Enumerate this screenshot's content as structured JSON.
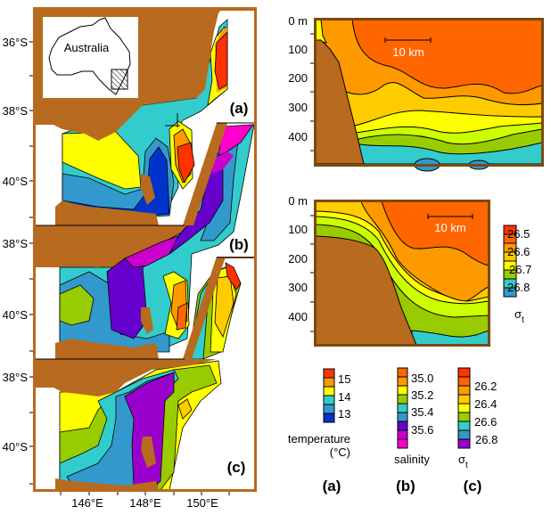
{
  "map": {
    "inset_label": "Australia",
    "lat_labels": [
      "36°S",
      "38°S",
      "40°S",
      "38°S",
      "40°S",
      "38°S",
      "40°S"
    ],
    "lon_labels": [
      "146°E",
      "148°E",
      "150°E"
    ],
    "panel_labels": [
      "(a)",
      "(b)",
      "(c)"
    ]
  },
  "section_top": {
    "depth_labels": [
      "0 m",
      "100",
      "200",
      "300",
      "400"
    ],
    "scale_label": "10 km"
  },
  "section_bottom": {
    "depth_labels": [
      "0 m",
      "100",
      "200",
      "300",
      "400"
    ],
    "scale_label": "10 km",
    "legend": {
      "labels": [
        "26.5",
        "26.6",
        "26.7",
        "26.8"
      ],
      "title": "σ",
      "title_sub": "t",
      "colors": [
        "#ff3300",
        "#ff6600",
        "#ff9900",
        "#ffcc00",
        "#ffff00",
        "#99cc00",
        "#33cccc",
        "#3399cc"
      ]
    }
  },
  "legends": {
    "temperature": {
      "labels": [
        "15",
        "14",
        "13"
      ],
      "title": "temperature",
      "units": "(°C)",
      "panel": "(a)",
      "colors": [
        "#ff3300",
        "#ff9900",
        "#ffff00",
        "#33cccc",
        "#3399cc",
        "#0033cc"
      ]
    },
    "salinity": {
      "labels": [
        "35.0",
        "35.2",
        "35.4",
        "35.6"
      ],
      "title": "salinity",
      "panel": "(b)",
      "colors": [
        "#ff6600",
        "#ff9900",
        "#ffff00",
        "#99cc00",
        "#33cccc",
        "#3399cc",
        "#6600cc",
        "#cc00cc",
        "#ff00cc"
      ]
    },
    "sigma_t": {
      "labels": [
        "26.2",
        "26.4",
        "26.6",
        "26.8"
      ],
      "title": "σ",
      "title_sub": "t",
      "panel": "(c)",
      "colors": [
        "#ff3300",
        "#ff6600",
        "#ff9900",
        "#ffcc00",
        "#ffff00",
        "#99cc00",
        "#33cccc",
        "#3399cc",
        "#9900cc"
      ]
    }
  }
}
